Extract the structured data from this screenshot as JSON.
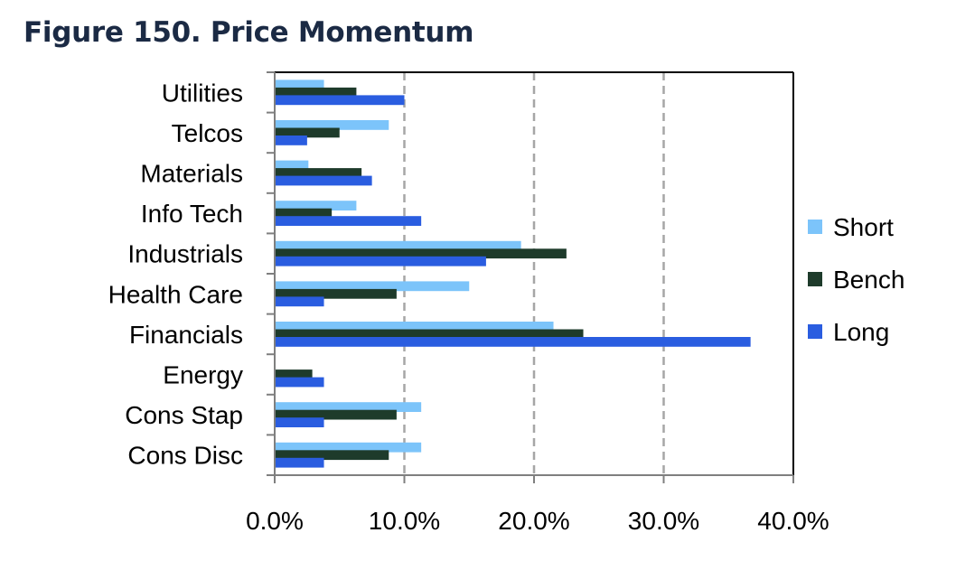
{
  "title": "Figure 150. Price Momentum",
  "chart_data": {
    "type": "bar",
    "orientation": "horizontal",
    "categories": [
      "Utilities",
      "Telcos",
      "Materials",
      "Info Tech",
      "Industrials",
      "Health Care",
      "Financials",
      "Energy",
      "Cons Stap",
      "Cons Disc"
    ],
    "series": [
      {
        "name": "Short",
        "color": "#7cc4fa",
        "values": [
          3.8,
          8.8,
          2.6,
          6.3,
          19.0,
          15.0,
          21.5,
          0.0,
          11.3,
          11.3
        ]
      },
      {
        "name": "Bench",
        "color": "#1e3b2b",
        "values": [
          6.3,
          5.0,
          6.7,
          4.4,
          22.5,
          9.4,
          23.8,
          2.9,
          9.4,
          8.8
        ]
      },
      {
        "name": "Long",
        "color": "#2a5de0",
        "values": [
          10.0,
          2.5,
          7.5,
          11.3,
          16.3,
          3.8,
          36.7,
          3.8,
          3.8,
          3.8
        ]
      }
    ],
    "xlim": [
      0,
      40
    ],
    "xticks": [
      0,
      10,
      20,
      30,
      40
    ],
    "xtick_labels": [
      "0.0%",
      "10.0%",
      "20.0%",
      "30.0%",
      "40.0%"
    ],
    "grid": "vertical dashed",
    "legend_position": "right"
  }
}
